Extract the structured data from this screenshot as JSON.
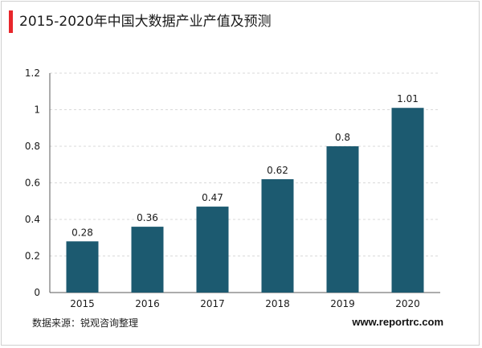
{
  "header": {
    "title": "2015-2020年中国大数据产业产值及预测"
  },
  "footer": {
    "source": "数据来源：锐观咨询整理",
    "website": "www.reportrc.com"
  },
  "colors": {
    "accent": "#e8262b",
    "bar": "#1c5a70",
    "grid": "#d9d9d9",
    "axis": "#595959",
    "text": "#1a1a1a"
  },
  "chart_data": {
    "type": "bar",
    "categories": [
      "2015",
      "2016",
      "2017",
      "2018",
      "2019",
      "2020"
    ],
    "values": [
      0.28,
      0.36,
      0.47,
      0.62,
      0.8,
      1.01
    ],
    "value_labels": [
      "0.28",
      "0.36",
      "0.47",
      "0.62",
      "0.8",
      "1.01"
    ],
    "y_ticks": [
      "0",
      "0.2",
      "0.4",
      "0.6",
      "0.8",
      "1",
      "1.2"
    ],
    "ylim": [
      0,
      1.2
    ],
    "grid": true,
    "legend": "none"
  }
}
